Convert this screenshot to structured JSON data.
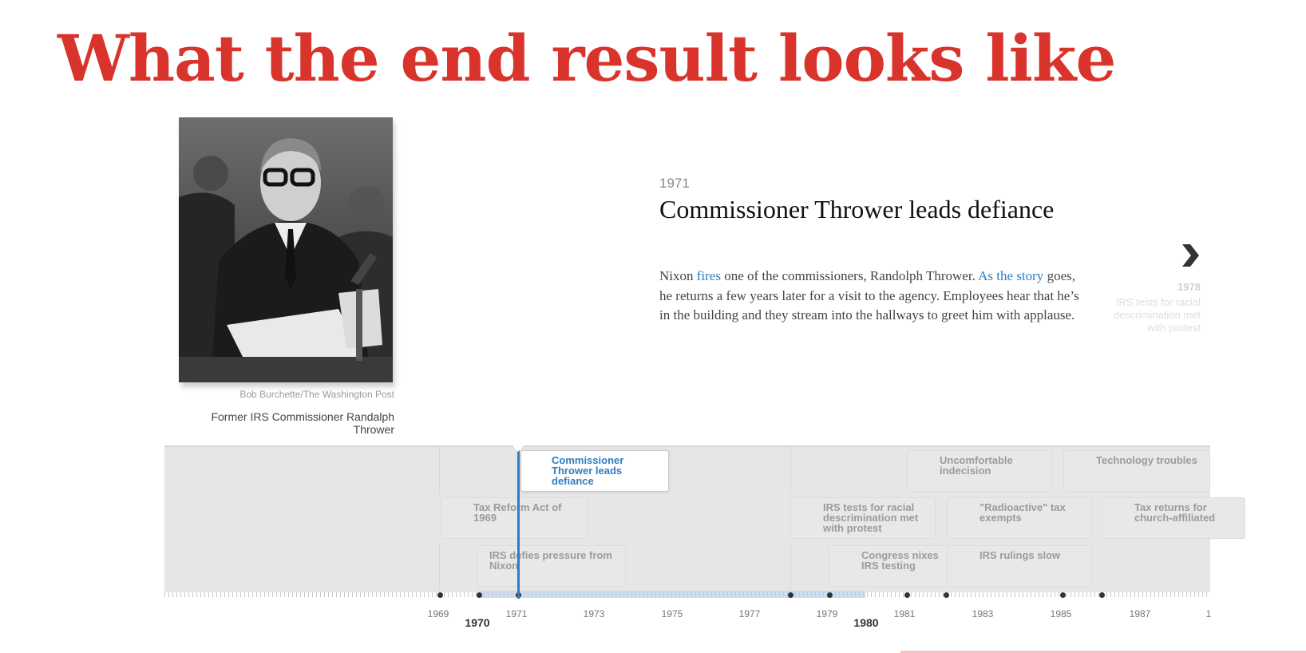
{
  "slide": {
    "title": "What the end result looks like"
  },
  "photo": {
    "credit": "Bob Burchette/The Washington Post",
    "caption": "Former IRS Commissioner Randalph Thrower"
  },
  "event": {
    "year": "1971",
    "title": "Commissioner Thrower leads defiance",
    "body": {
      "t1": "Nixon ",
      "link1": "fires",
      "t2": " one of the commissioners, Randolph Thrower. ",
      "link2": "As the story",
      "t3": " goes, he returns a few years later for a visit to the agency. Employees hear that he’s in the building and they stream into the hallways to greet him with applause."
    }
  },
  "next": {
    "icon": "chevron-right-icon",
    "year": "1978",
    "text": "IRS tests for racial descrimination met with protest"
  },
  "timeline": {
    "rows": [
      [
        {
          "label": "Commissioner Thrower leads defiance",
          "active": true
        },
        {
          "label": "Uncomfortable indecision"
        },
        {
          "label": "Technology troubles"
        }
      ],
      [
        {
          "label": "Tax Reform Act of 1969"
        },
        {
          "label": "IRS tests for racial descrimination met with protest"
        },
        {
          "label": "\"Radioactive\" tax exempts"
        },
        {
          "label": "Tax returns for church-affiliated"
        }
      ],
      [
        {
          "label": "IRS defies pressure from Nixon"
        },
        {
          "label": "Congress nixes IRS testing"
        },
        {
          "label": "IRS rulings slow"
        }
      ]
    ],
    "axis": {
      "years": [
        "1969",
        "1970",
        "1971",
        "1973",
        "1975",
        "1977",
        "1979",
        "1980",
        "1981",
        "1983",
        "1985",
        "1987",
        "1"
      ],
      "major_years": [
        "1970",
        "1980"
      ]
    }
  },
  "colors": {
    "title_red": "#d9342b",
    "link_blue": "#2f7cc1",
    "timeline_bg": "#e6e6e6"
  }
}
